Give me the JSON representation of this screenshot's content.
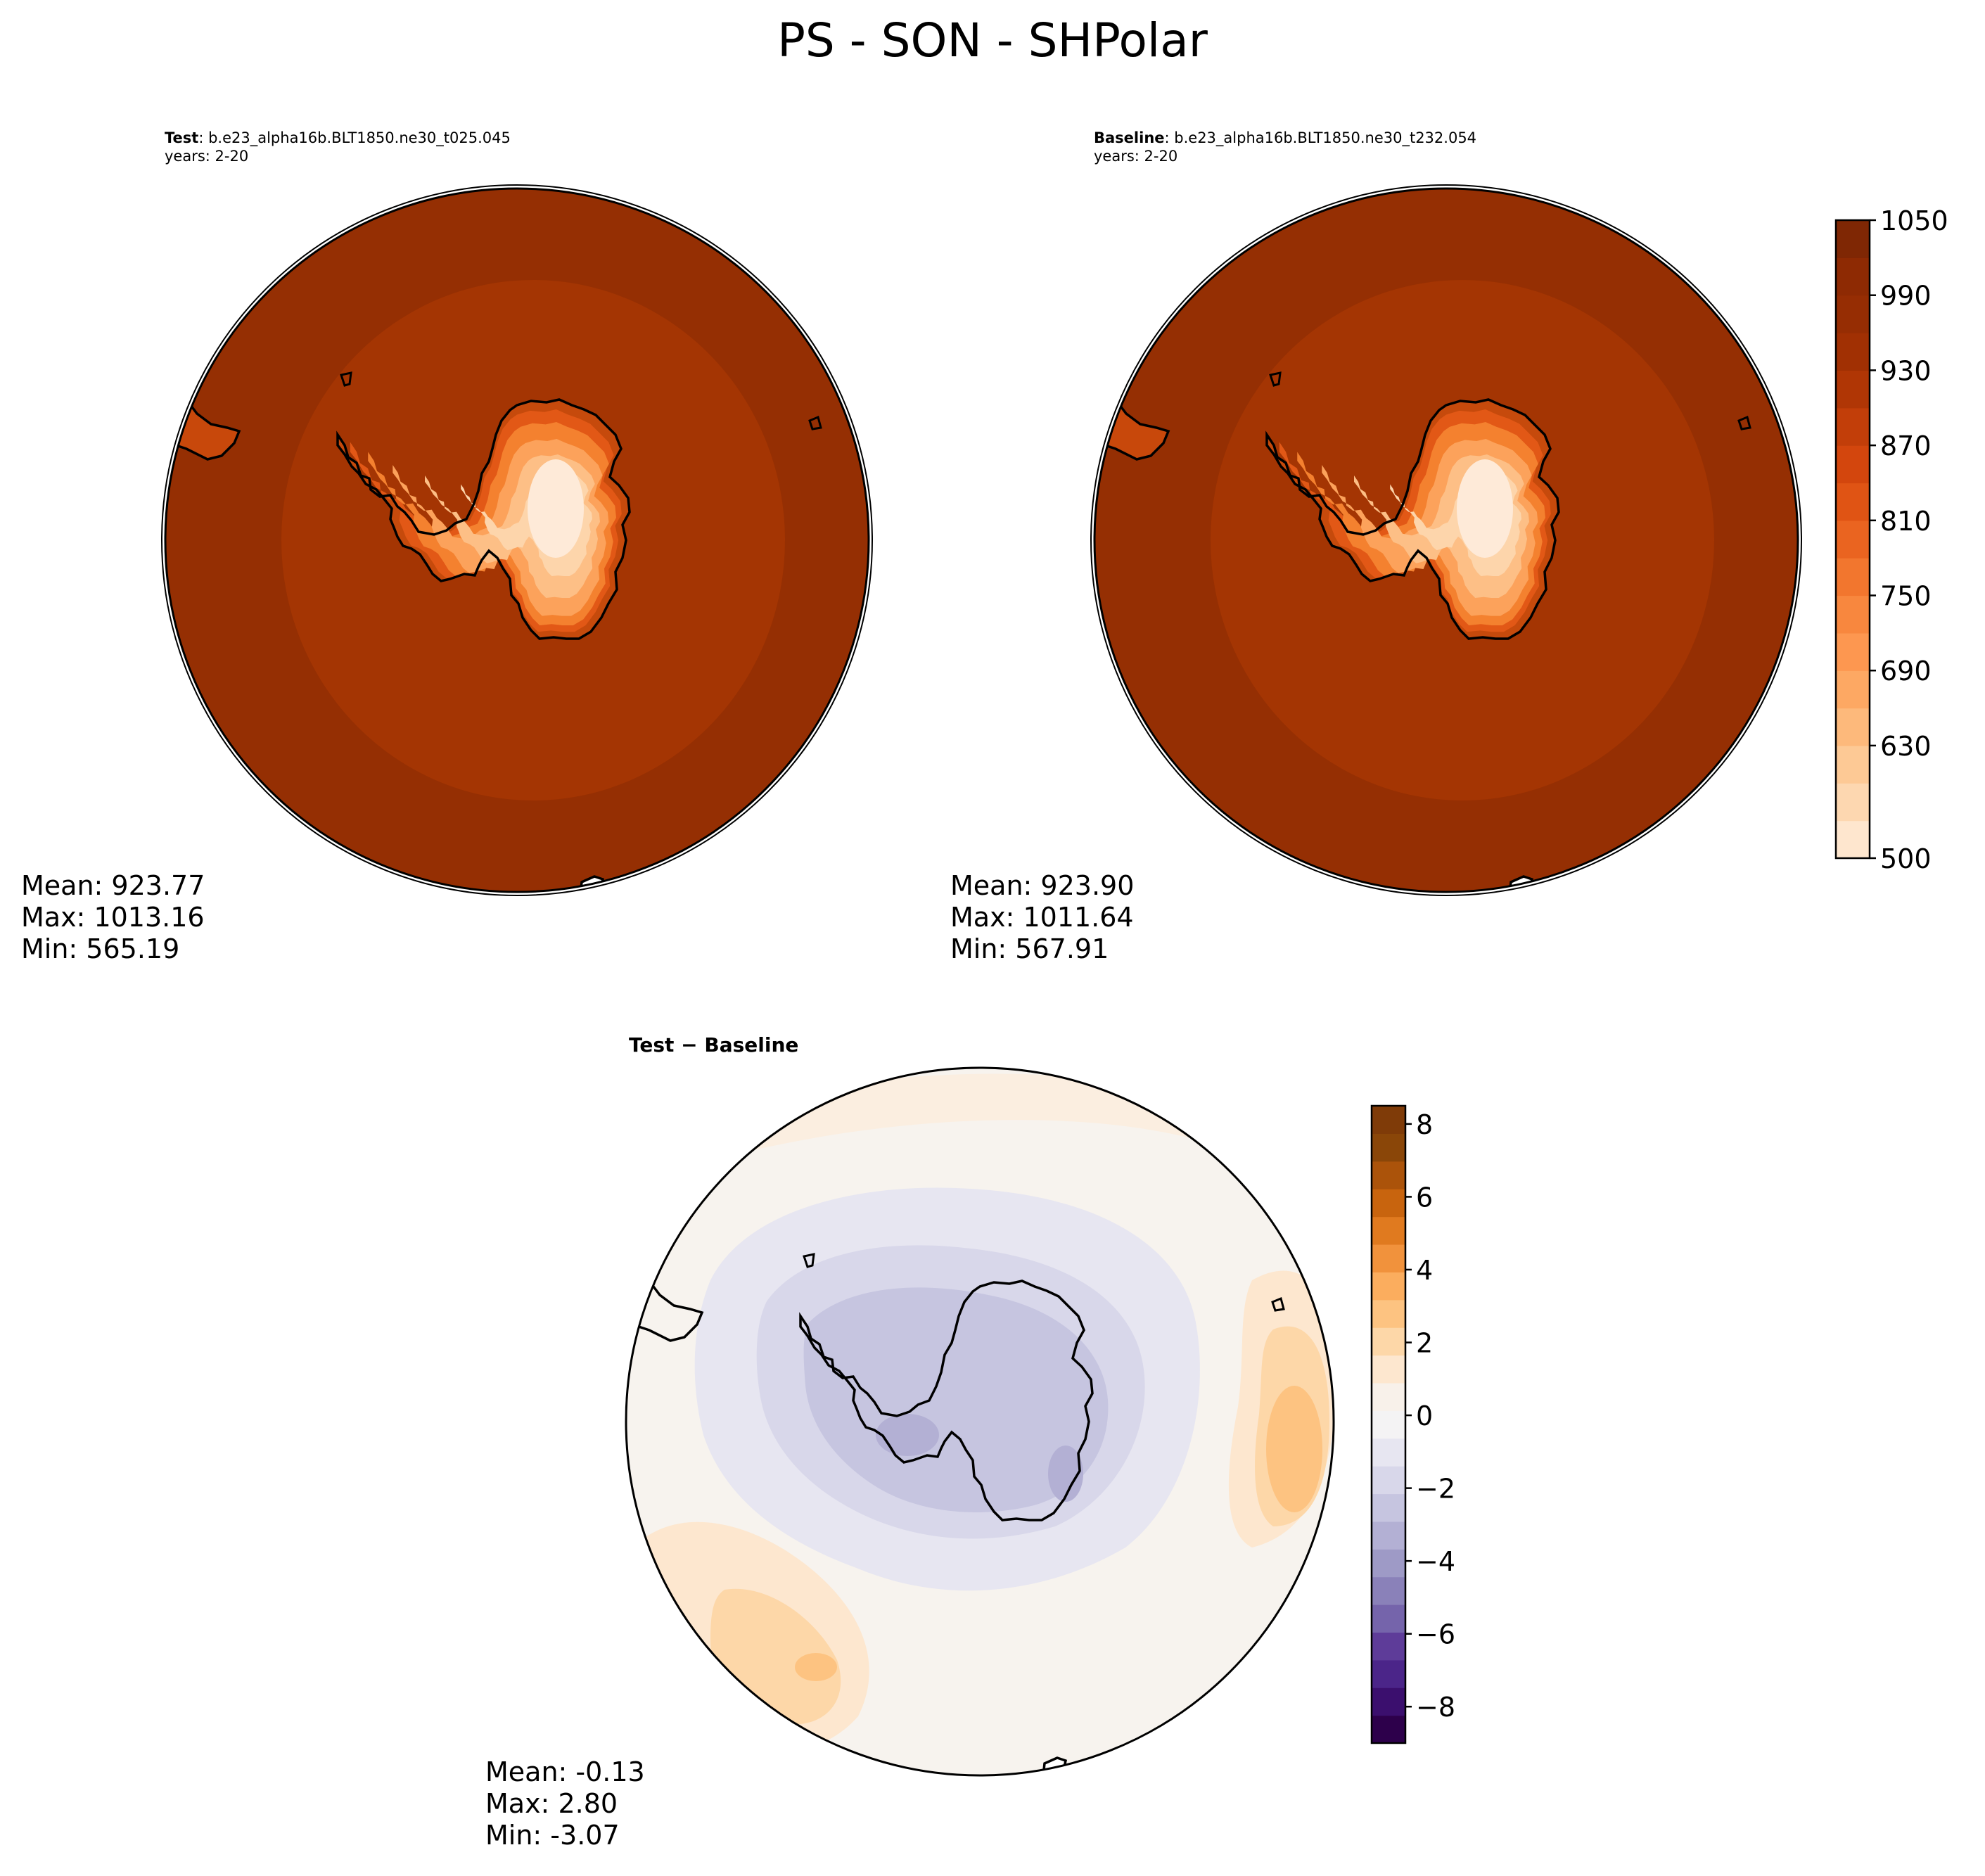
{
  "figure_title": "PS - SON - SHPolar",
  "panels": {
    "test": {
      "title_bold": "Test",
      "title_rest": ": b.e23_alpha16b.BLT1850.ne30_t025.045",
      "years": "years: 2-20",
      "stats": {
        "mean": "Mean: 923.77",
        "max": "Max: 1013.16",
        "min": "Min: 565.19"
      }
    },
    "baseline": {
      "title_bold": "Baseline",
      "title_rest": ": b.e23_alpha16b.BLT1850.ne30_t232.054",
      "years": "years: 2-20",
      "stats": {
        "mean": "Mean: 923.90",
        "max": "Max: 1011.64",
        "min": "Min: 567.91"
      }
    },
    "diff": {
      "title_a": "Test",
      "title_op": " − ",
      "title_b": "Baseline",
      "stats": {
        "mean": "Mean: -0.13",
        "max": "Max:  2.80",
        "min": "Min: -3.07"
      }
    }
  },
  "chart_data": [
    {
      "type": "heatmap",
      "projection": "south polar stereographic",
      "name": "Test",
      "units_colorbar_range": [
        500,
        1050
      ],
      "colormap": "Oranges",
      "field_levels_description": "ocean ~990-1050, mid ring ~970-990, Antarctic interior ~560-700"
    },
    {
      "type": "heatmap",
      "projection": "south polar stereographic",
      "name": "Baseline",
      "colormap": "Oranges",
      "colorbar": {
        "ticks": [
          "1050",
          "990",
          "930",
          "870",
          "810",
          "750",
          "690",
          "630",
          "500"
        ],
        "range": [
          500,
          1050
        ],
        "levels": [
          500,
          570,
          600,
          630,
          660,
          690,
          720,
          750,
          780,
          810,
          840,
          870,
          900,
          930,
          960,
          990,
          1020,
          1050
        ],
        "colors": [
          "#fee6ce",
          "#fdd7b0",
          "#fdc995",
          "#fdb97b",
          "#fda863",
          "#fd9750",
          "#f8873e",
          "#f2762e",
          "#ea6420",
          "#e05414",
          "#d3460d",
          "#c23e09",
          "#b03605",
          "#a13003",
          "#962d03",
          "#8e2a03",
          "#7f2704"
        ]
      }
    },
    {
      "type": "heatmap",
      "projection": "south polar stereographic",
      "name": "Test − Baseline",
      "colormap": "PuOr_r",
      "colorbar": {
        "ticks": [
          "8",
          "6",
          "4",
          "2",
          "0",
          "−2",
          "−4",
          "−6",
          "−8"
        ],
        "range": [
          -9,
          8.5
        ],
        "colors_low_to_high": [
          "#2d004b",
          "#3b0f6e",
          "#4b2589",
          "#5e3c99",
          "#7564ab",
          "#8a81b9",
          "#9e9ac6",
          "#b3b0d4",
          "#c6c5e0",
          "#d8d7ea",
          "#e7e6f1",
          "#f4f3f4",
          "#f8f1ea",
          "#fde7cf",
          "#fdd7a8",
          "#fdc381",
          "#fbad5e",
          "#f1923c",
          "#e07a1f",
          "#c8640e",
          "#ab530a",
          "#8a4608",
          "#7f3b08"
        ]
      }
    }
  ]
}
